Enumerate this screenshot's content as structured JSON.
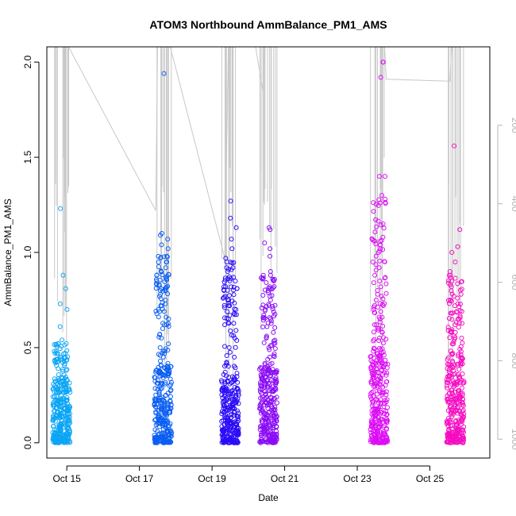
{
  "chart_data": {
    "type": "scatter",
    "title": "ATOM3 Northbound AmmBalance_PM1_AMS",
    "xlabel": "Date",
    "ylabel": "AmmBalance_PM1_AMS",
    "xlim": [
      14.45,
      26.65
    ],
    "ylim": [
      -0.08,
      2.08
    ],
    "x_ticks": [
      {
        "value": 15,
        "label": "Oct 15"
      },
      {
        "value": 17,
        "label": "Oct 17"
      },
      {
        "value": 19,
        "label": "Oct 19"
      },
      {
        "value": 21,
        "label": "Oct 21"
      },
      {
        "value": 23,
        "label": "Oct 23"
      },
      {
        "value": 25,
        "label": "Oct 25"
      }
    ],
    "y_ticks": [
      {
        "value": 0.0,
        "label": "0.0"
      },
      {
        "value": 0.5,
        "label": "0.5"
      },
      {
        "value": 1.0,
        "label": "1.0"
      },
      {
        "value": 1.5,
        "label": "1.5"
      },
      {
        "value": 2.0,
        "label": "2.0"
      }
    ],
    "right_axis": {
      "ticks": [
        {
          "value": 200,
          "label": "200"
        },
        {
          "value": 400,
          "label": "400"
        },
        {
          "value": 600,
          "label": "600"
        },
        {
          "value": 800,
          "label": "800"
        },
        {
          "value": 1000,
          "label": "1000"
        }
      ],
      "range_top": 0,
      "range_bottom": 1048,
      "color": "#b4b4b4"
    },
    "grid": false,
    "marker": "open-circle",
    "color_scale": [
      "#00aaff",
      "#0066ff",
      "#2200ff",
      "#8800ff",
      "#dd00ff",
      "#ff00bb"
    ],
    "clusters": [
      {
        "x": 14.85,
        "color": "#0aa5f5",
        "ydense": 0.32,
        "outliers": [
          1.23,
          0.88,
          0.81,
          0.73,
          0.7,
          0.61,
          0.54,
          0.52,
          0.47,
          0.45,
          0.44,
          0.42
        ]
      },
      {
        "x": 17.65,
        "color": "#0a5ef2",
        "ydense": 0.42,
        "outliers": [
          1.94,
          1.1,
          1.09,
          1.07,
          1.04,
          1.02,
          0.98,
          0.95,
          0.92,
          0.9,
          0.88,
          0.85,
          0.83,
          0.8,
          0.78,
          0.75,
          0.72,
          0.7,
          0.66,
          0.62,
          0.6,
          0.57,
          0.55,
          0.52,
          0.5,
          0.47,
          0.45
        ]
      },
      {
        "x": 19.5,
        "color": "#2a0cf7",
        "ydense": 0.35,
        "outliers": [
          1.27,
          1.18,
          1.13,
          1.07,
          1.02,
          0.97,
          0.95,
          0.92,
          0.9,
          0.87,
          0.85,
          0.82,
          0.8,
          0.77,
          0.75,
          0.72,
          0.7,
          0.67,
          0.65,
          0.62,
          0.59,
          0.55,
          0.5,
          0.45,
          0.41
        ]
      },
      {
        "x": 20.55,
        "color": "#8a0cf5",
        "ydense": 0.4,
        "outliers": [
          1.13,
          1.12,
          1.05,
          1.02,
          0.98,
          0.9,
          0.88,
          0.85,
          0.82,
          0.8,
          0.77,
          0.75,
          0.72,
          0.7,
          0.67,
          0.64,
          0.61,
          0.58,
          0.55,
          0.5,
          0.45
        ]
      },
      {
        "x": 23.6,
        "color": "#dc0cf5",
        "ydense": 0.5,
        "outliers": [
          2.0,
          2.0,
          1.92,
          1.4,
          1.4,
          1.3,
          1.28,
          1.15,
          1.08,
          1.06,
          1.04,
          1.02,
          1.0,
          0.98,
          0.95,
          0.92,
          0.88,
          0.85,
          0.82,
          0.8,
          0.78,
          0.75,
          0.72,
          0.7,
          0.66,
          0.62,
          0.58,
          0.55
        ]
      },
      {
        "x": 25.7,
        "color": "#f50cc0",
        "ydense": 0.45,
        "outliers": [
          1.56,
          1.12,
          1.03,
          1.0,
          0.95,
          0.9,
          0.88,
          0.85,
          0.82,
          0.78,
          0.75,
          0.72,
          0.68,
          0.65,
          0.62,
          0.58,
          0.55,
          0.52,
          0.48
        ]
      }
    ],
    "gray_track": {
      "color": "#c8c8c8",
      "points": [
        [
          15.05,
          2.08
        ],
        [
          17.45,
          1.22
        ],
        [
          17.5,
          2.08
        ],
        [
          17.85,
          2.08
        ],
        [
          19.35,
          0.97
        ],
        [
          19.45,
          2.08
        ],
        [
          20.2,
          2.08
        ],
        [
          20.4,
          1.85
        ],
        [
          20.45,
          2.08
        ],
        [
          23.75,
          2.08
        ],
        [
          23.8,
          1.91
        ],
        [
          25.55,
          1.9
        ],
        [
          25.6,
          2.08
        ]
      ]
    }
  }
}
